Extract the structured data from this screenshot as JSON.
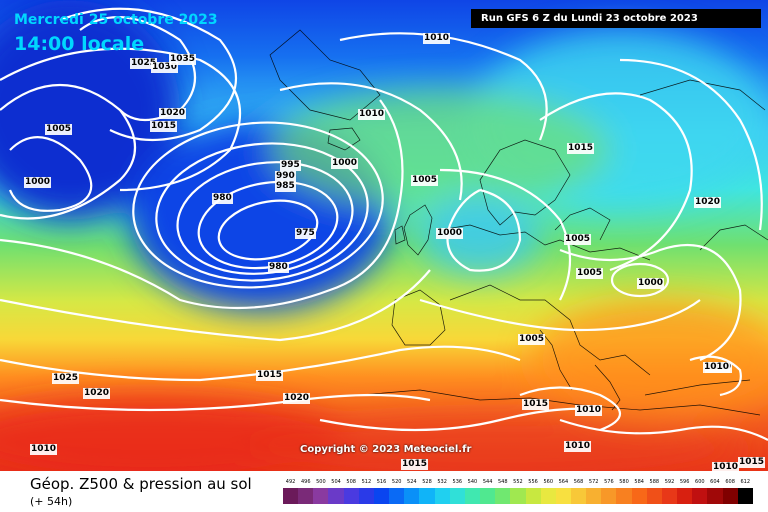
{
  "header": {
    "date_line": "Mercredi 25 octobre 2023",
    "time_line": "14:00 locale",
    "run_line": "Run GFS 6 Z du Lundi 23 octobre 2023"
  },
  "copyright": "Copyright © 2023 Meteociel.fr",
  "footer": {
    "title": "Géop. Z500 & pression au sol",
    "subtitle": "(+ 54h)"
  },
  "isobar_labels": [
    "1025",
    "1030",
    "1035",
    "1020",
    "1015",
    "1005",
    "1000",
    "1010",
    "1010",
    "1000",
    "995",
    "990",
    "985",
    "980",
    "975",
    "980",
    "1005",
    "1000",
    "1015",
    "1020",
    "1005",
    "1005",
    "1000",
    "1005",
    "1010",
    "1015",
    "1025",
    "1020",
    "1020",
    "1015",
    "1015",
    "1010",
    "1010",
    "1010",
    "1015",
    "1010",
    "1010"
  ],
  "colors": {
    "low_core": "#0a2fd0",
    "deep_blue": "#0f45e6",
    "light_blue": "#3cc8f5",
    "cyan": "#40e6e0",
    "green": "#6fe070",
    "yellow": "#f5e040",
    "orange": "#ff8f20",
    "red": "#f23a20",
    "isobar": "#ffffff",
    "title_text": "#00d7ff"
  },
  "scale": {
    "values": [
      "492",
      "496",
      "500",
      "504",
      "508",
      "512",
      "516",
      "520",
      "524",
      "528",
      "532",
      "536",
      "540",
      "544",
      "548",
      "552",
      "556",
      "560",
      "564",
      "568",
      "572",
      "576",
      "580",
      "584",
      "588",
      "592",
      "596",
      "600",
      "604",
      "608",
      "612"
    ],
    "colors": [
      "#6b1a5a",
      "#7a2a78",
      "#8a3aa0",
      "#6a3ac8",
      "#4a3ae0",
      "#2a3ae8",
      "#0a45f0",
      "#0a6af5",
      "#0a90f8",
      "#10b4f8",
      "#20d0f0",
      "#30e0d8",
      "#40e8b0",
      "#50e890",
      "#70e870",
      "#a0e850",
      "#c8e840",
      "#e8e840",
      "#f8e040",
      "#f8c838",
      "#f8b030",
      "#f89828",
      "#f88020",
      "#f86818",
      "#f05018",
      "#e83818",
      "#d82010",
      "#c01010",
      "#a00808",
      "#800000",
      "#000000"
    ]
  }
}
